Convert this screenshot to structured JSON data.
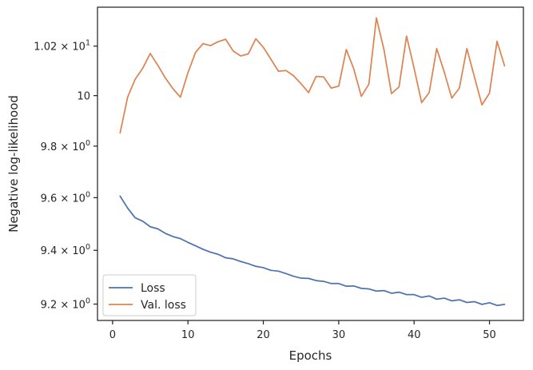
{
  "chart_data": {
    "type": "line",
    "xlabel": "Epochs",
    "ylabel": "Negative log-likelihood",
    "yscale": "log",
    "xlim": [
      -2,
      54.5
    ],
    "ylim": [
      9.14,
      10.36
    ],
    "grid": false,
    "legend": "lower-left",
    "x_ticks": [
      {
        "value": 0,
        "label": "0"
      },
      {
        "value": 10,
        "label": "10"
      },
      {
        "value": 20,
        "label": "20"
      },
      {
        "value": 30,
        "label": "30"
      },
      {
        "value": 40,
        "label": "40"
      },
      {
        "value": 50,
        "label": "50"
      }
    ],
    "y_ticks": [
      {
        "value": 9.2,
        "base": "9.2",
        "sep": " × ",
        "exp": "0"
      },
      {
        "value": 9.4,
        "base": "9.4",
        "sep": " × ",
        "exp": "0"
      },
      {
        "value": 9.6,
        "base": "9.6",
        "sep": " × ",
        "exp": "0"
      },
      {
        "value": 9.8,
        "base": "9.8",
        "sep": " × ",
        "exp": "0"
      },
      {
        "value": 10.0,
        "base": "10",
        "sep": "",
        "exp": ""
      },
      {
        "value": 10.2,
        "base": "1.02",
        "sep": " × ",
        "exp": "1"
      }
    ],
    "x": [
      1,
      2,
      3,
      4,
      5,
      6,
      7,
      8,
      9,
      10,
      11,
      12,
      13,
      14,
      15,
      16,
      17,
      18,
      19,
      20,
      21,
      22,
      23,
      24,
      25,
      26,
      27,
      28,
      29,
      30,
      31,
      32,
      33,
      34,
      35,
      36,
      37,
      38,
      39,
      40,
      41,
      42,
      43,
      44,
      45,
      46,
      47,
      48,
      49,
      50,
      51,
      52
    ],
    "series": [
      {
        "name": "Loss",
        "color": "#4c72b0",
        "values": [
          9.606,
          9.56,
          9.523,
          9.51,
          9.489,
          9.481,
          9.464,
          9.452,
          9.444,
          9.43,
          9.417,
          9.404,
          9.393,
          9.385,
          9.372,
          9.368,
          9.358,
          9.35,
          9.34,
          9.335,
          9.325,
          9.322,
          9.313,
          9.303,
          9.296,
          9.295,
          9.287,
          9.284,
          9.276,
          9.276,
          9.266,
          9.267,
          9.258,
          9.256,
          9.248,
          9.25,
          9.24,
          9.244,
          9.235,
          9.235,
          9.225,
          9.23,
          9.218,
          9.222,
          9.212,
          9.216,
          9.206,
          9.209,
          9.199,
          9.205,
          9.195,
          9.199
        ]
      },
      {
        "name": "Val. loss",
        "color": "#dd8452",
        "values": [
          9.852,
          9.994,
          10.066,
          10.11,
          10.17,
          10.122,
          10.071,
          10.028,
          9.994,
          10.092,
          10.174,
          10.21,
          10.202,
          10.218,
          10.228,
          10.18,
          10.16,
          10.168,
          10.23,
          10.195,
          10.147,
          10.098,
          10.101,
          10.08,
          10.048,
          10.012,
          10.077,
          10.075,
          10.03,
          10.038,
          10.186,
          10.107,
          9.997,
          10.046,
          10.316,
          10.186,
          10.008,
          10.035,
          10.241,
          10.11,
          9.972,
          10.012,
          10.19,
          10.095,
          9.99,
          10.03,
          10.19,
          10.075,
          9.963,
          10.01,
          10.22,
          10.12
        ]
      }
    ]
  }
}
